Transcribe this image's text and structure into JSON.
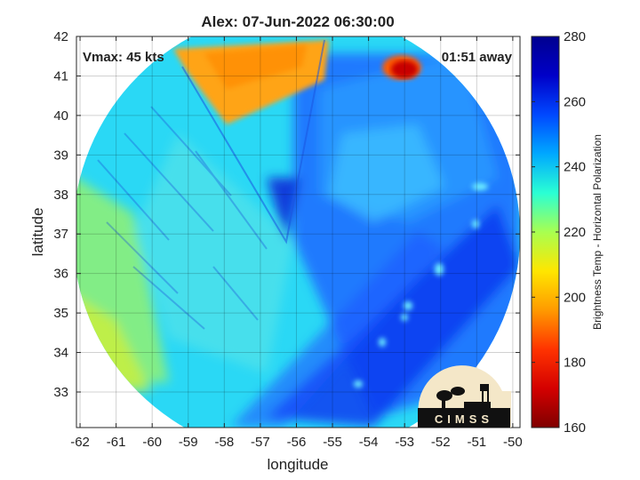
{
  "chart_data": {
    "type": "heatmap",
    "title": "Alex: 07-Jun-2022 06:30:00",
    "xlabel": "longitude",
    "ylabel": "latitude",
    "xlim": [
      -62.1,
      -49.8
    ],
    "ylim": [
      32.1,
      42
    ],
    "xticks": [
      -62,
      -61,
      -60,
      -59,
      -58,
      -57,
      -56,
      -55,
      -54,
      -53,
      -52,
      -51,
      -50
    ],
    "yticks": [
      33,
      34,
      35,
      36,
      37,
      38,
      39,
      40,
      41,
      42
    ],
    "grid": true,
    "annotations": {
      "vmax": "Vmax: 45 kts",
      "time_offset": "01:51 away"
    },
    "colorbar": {
      "label": "Brightness Temp - Horizontal Polarization",
      "range": [
        160,
        280
      ],
      "ticks": [
        160,
        180,
        200,
        220,
        240,
        260,
        280
      ],
      "colormap": [
        "#7f0000",
        "#d40000",
        "#ff3300",
        "#ff9a00",
        "#ffe600",
        "#a8ff50",
        "#2affd4",
        "#00a8ff",
        "#0048ff",
        "#0000c8",
        "#00008f"
      ]
    },
    "swath": {
      "center": [
        -56.0,
        37.0
      ],
      "radius_deg_lon": 6.2
    },
    "field_regions": [
      {
        "name": "west",
        "value": 236
      },
      {
        "name": "far-west-edge",
        "value": 222
      },
      {
        "name": "northwest-strip",
        "value": 196
      },
      {
        "name": "northeast-cold-spot",
        "value": 168
      },
      {
        "name": "central",
        "value": 240
      },
      {
        "name": "east",
        "value": 258
      },
      {
        "name": "southeast-band",
        "value": 264
      }
    ]
  },
  "logo": {
    "text": "CIMSS"
  }
}
